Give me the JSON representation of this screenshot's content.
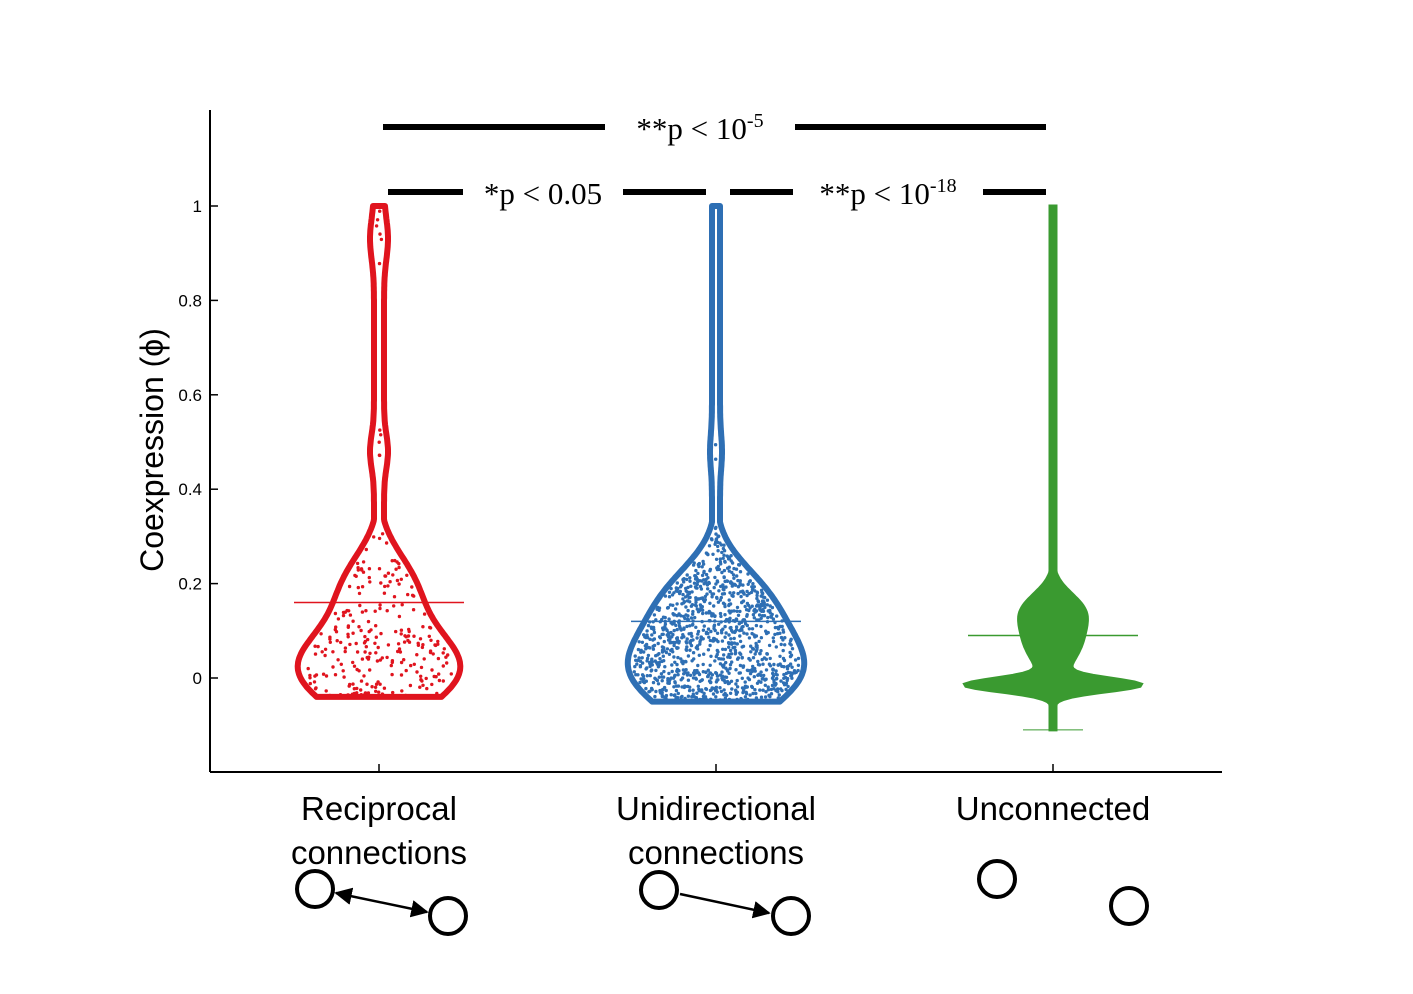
{
  "chart_data": {
    "type": "violin",
    "ylabel": "Coexpression (ϕ)",
    "ylim": [
      -0.2,
      1.2
    ],
    "yticks": [
      0,
      0.2,
      0.4,
      0.6,
      0.8,
      1
    ],
    "ytick_labels": [
      "0",
      "0.2",
      "0.4",
      "0.6",
      "0.8",
      "1"
    ],
    "categories": [
      {
        "name_line1": "Reciprocal",
        "name_line2": "connections",
        "color": "#e0141e",
        "mean": 0.16,
        "min": -0.04,
        "max": 1.0,
        "icon": "bidirectional-arrow"
      },
      {
        "name_line1": "Unidirectional",
        "name_line2": "connections",
        "color": "#2e6fb4",
        "mean": 0.12,
        "min": -0.05,
        "max": 1.0,
        "icon": "one-way-arrow"
      },
      {
        "name_line1": "Unconnected",
        "name_line2": "",
        "color": "#3a9a30",
        "mean": 0.09,
        "min": -0.11,
        "max": 1.0,
        "icon": "no-connection"
      }
    ],
    "significance": [
      {
        "from": 0,
        "to": 1,
        "label": "*p < 0.05",
        "base": "",
        "exp": ""
      },
      {
        "from": 1,
        "to": 2,
        "label": "**p < 10",
        "base": "",
        "exp": "-18"
      },
      {
        "from": 0,
        "to": 2,
        "label": "**p < 10",
        "base": "",
        "exp": "-5"
      }
    ]
  }
}
